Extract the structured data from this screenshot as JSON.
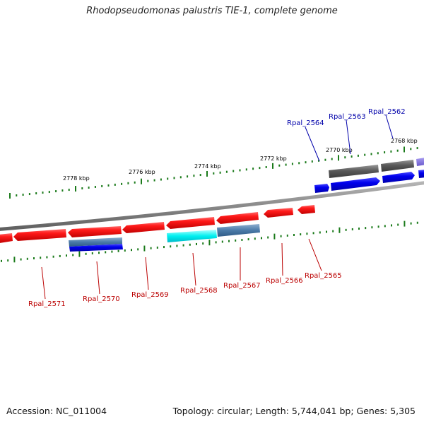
{
  "title": "Rhodopseudomonas palustris TIE-1, complete genome",
  "footer": {
    "accession": "Accession: NC_011004",
    "summary": "Topology: circular; Length: 5,744,041 bp; Genes: 5,305"
  },
  "colors": {
    "backbone": "#808080",
    "forward_gene": "#0000ee",
    "reverse_gene": "#ee0000",
    "rna_gene": "#555555",
    "pseudo_gene": "#7f6fd0",
    "tick": "#1a7a1a",
    "label_top": "#0000aa",
    "label_bottom": "#bb0000"
  },
  "scale_labels": [
    "2778 kbp",
    "2776 kbp",
    "2774 kbp",
    "2772 kbp",
    "2770 kbp",
    "2768 kbp"
  ],
  "genes": {
    "top": [
      "Rpal_2564",
      "Rpal_2563",
      "Rpal_2562"
    ],
    "bottom": [
      "Rpal_2571",
      "Rpal_2570",
      "Rpal_2569",
      "Rpal_2568",
      "Rpal_2567",
      "Rpal_2566",
      "Rpal_2565"
    ]
  }
}
